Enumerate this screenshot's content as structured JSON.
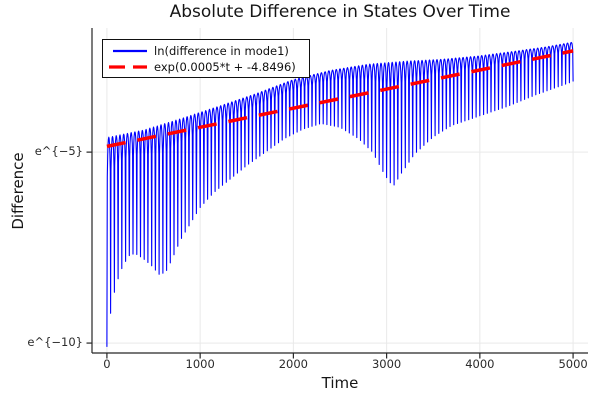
{
  "chart_data": {
    "type": "line",
    "title": "Absolute Difference in States Over Time",
    "xlabel": "Time",
    "ylabel": "Difference",
    "grid": true,
    "legend_position": "top-left",
    "y_scale_note": "y axis shows ln(difference); tick labels are e^{n}",
    "xlim": [
      -160,
      5160
    ],
    "ylim": [
      -10.26,
      -1.75
    ],
    "x_ticks": [
      {
        "value": 0,
        "label": "0"
      },
      {
        "value": 1000,
        "label": "1000"
      },
      {
        "value": 2000,
        "label": "2000"
      },
      {
        "value": 3000,
        "label": "3000"
      },
      {
        "value": 4000,
        "label": "4000"
      },
      {
        "value": 5000,
        "label": "5000"
      }
    ],
    "y_ticks": [
      {
        "value": -5,
        "label": "e^{−5}"
      },
      {
        "value": -10,
        "label": "e^{−10}"
      }
    ],
    "series": [
      {
        "name": "ln(difference in mode1)",
        "color": "#0000ff",
        "style": "solid",
        "type": "oscillating-band",
        "x_range": [
          0,
          5000
        ],
        "spike_period_t": 40,
        "spike_sharpness": 0.18,
        "upper_envelope": [
          [
            0,
            -4.62
          ],
          [
            400,
            -4.42
          ],
          [
            800,
            -4.12
          ],
          [
            1200,
            -3.8
          ],
          [
            1600,
            -3.47
          ],
          [
            2000,
            -3.1
          ],
          [
            2400,
            -2.86
          ],
          [
            2800,
            -2.7
          ],
          [
            3200,
            -2.62
          ],
          [
            3600,
            -2.57
          ],
          [
            4000,
            -2.48
          ],
          [
            4400,
            -2.35
          ],
          [
            4700,
            -2.25
          ],
          [
            5000,
            -2.12
          ]
        ],
        "lower_envelope": [
          [
            0,
            -10.1
          ],
          [
            50,
            -9.0
          ],
          [
            100,
            -8.45
          ],
          [
            160,
            -8.05
          ],
          [
            230,
            -7.72
          ],
          [
            300,
            -7.65
          ],
          [
            380,
            -7.77
          ],
          [
            470,
            -7.95
          ],
          [
            560,
            -8.2
          ],
          [
            630,
            -8.15
          ],
          [
            700,
            -7.8
          ],
          [
            790,
            -7.3
          ],
          [
            900,
            -6.85
          ],
          [
            1000,
            -6.45
          ],
          [
            1150,
            -6.05
          ],
          [
            1300,
            -5.75
          ],
          [
            1500,
            -5.35
          ],
          [
            1700,
            -5.0
          ],
          [
            1900,
            -4.65
          ],
          [
            2100,
            -4.4
          ],
          [
            2300,
            -4.25
          ],
          [
            2500,
            -4.35
          ],
          [
            2700,
            -4.65
          ],
          [
            2850,
            -5.0
          ],
          [
            2980,
            -5.6
          ],
          [
            3070,
            -5.9
          ],
          [
            3160,
            -5.55
          ],
          [
            3300,
            -5.05
          ],
          [
            3500,
            -4.6
          ],
          [
            3700,
            -4.3
          ],
          [
            4000,
            -4.05
          ],
          [
            4300,
            -3.8
          ],
          [
            4600,
            -3.5
          ],
          [
            5000,
            -3.15
          ]
        ]
      },
      {
        "name": "exp(0.0005*t + -4.8496)",
        "color": "#ff0000",
        "style": "dashed",
        "type": "linear-in-log",
        "slope": 0.0005,
        "intercept": -4.8496,
        "x_range": [
          0,
          5000
        ]
      }
    ],
    "colors": {
      "axis": "#262626",
      "grid": "#e9e9e9",
      "text": "#2b2b2b"
    }
  }
}
